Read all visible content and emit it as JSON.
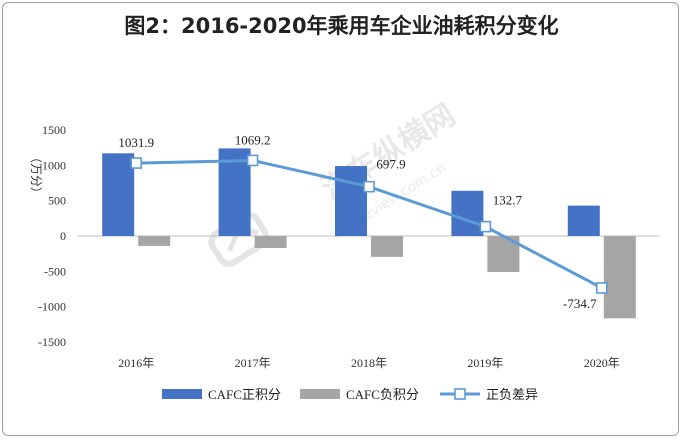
{
  "chart_data": {
    "type": "bar",
    "title": "图2：2016-2020年乘用车企业油耗积分变化",
    "ylabel": "（万分）",
    "xlabel": "",
    "categories": [
      "2016年",
      "2017年",
      "2018年",
      "2019年",
      "2020年"
    ],
    "ylim": [
      -1500,
      1500
    ],
    "yticks": [
      1500,
      1000,
      500,
      0,
      -500,
      -1000,
      -1500
    ],
    "ytick_labels": [
      "1500",
      "1000",
      "500",
      "0",
      "-500",
      "-1000",
      "-1500"
    ],
    "series": [
      {
        "name": "CAFC正积分",
        "type": "bar",
        "color": "#4472c4",
        "values": [
          1170,
          1240,
          990,
          640,
          430
        ]
      },
      {
        "name": "CAFC负积分",
        "type": "bar",
        "color": "#a5a5a5",
        "values": [
          -140,
          -170,
          -295,
          -510,
          -1165
        ]
      },
      {
        "name": "正负差异",
        "type": "line",
        "color": "#5b9bd5",
        "values": [
          1031.9,
          1069.2,
          697.9,
          132.7,
          -734.7
        ],
        "labels": [
          "1031.9",
          "1069.2",
          "697.9",
          "132.7",
          "-734.7"
        ]
      }
    ],
    "grid": false,
    "legend_position": "bottom"
  },
  "watermark": {
    "text": "汽车纵横网",
    "url_text": "autoreview.com.cn"
  }
}
